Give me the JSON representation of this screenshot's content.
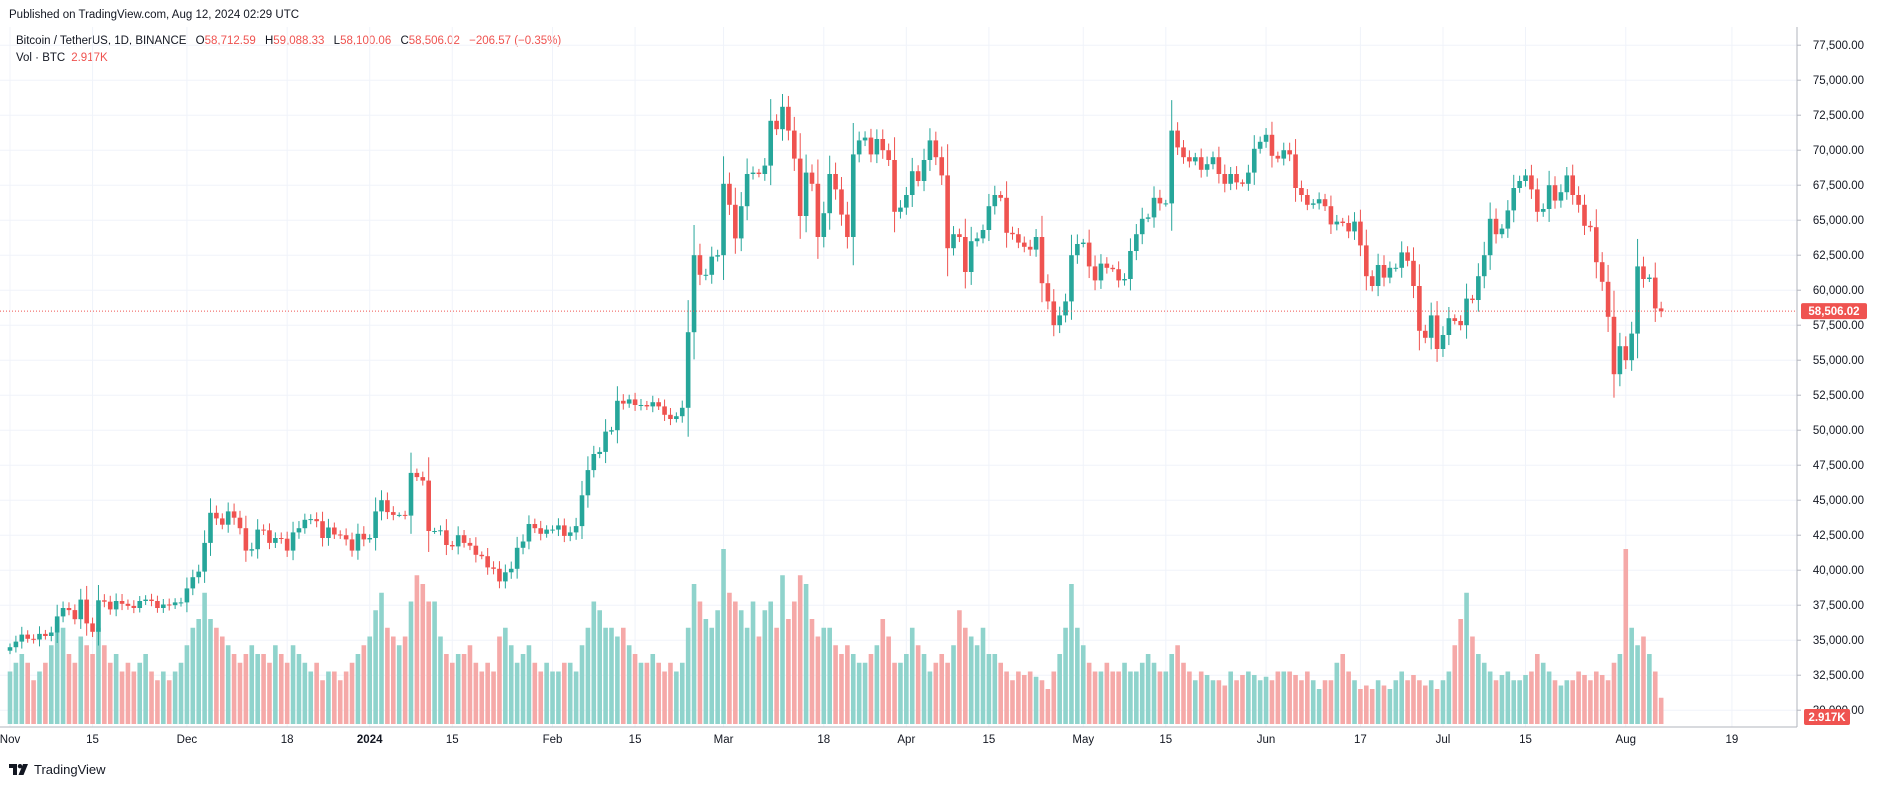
{
  "header": {
    "published": "Published on TradingView.com, Aug 12, 2024 02:29 UTC"
  },
  "legend": {
    "symbol": "Bitcoin / TetherUS, 1D, BINANCE",
    "o_label": "O",
    "o_value": "58,712.59",
    "h_label": "H",
    "h_value": "59,088.33",
    "l_label": "L",
    "l_value": "58,100.06",
    "c_label": "C",
    "c_value": "58,506.02",
    "change": "−206.57 (−0.35%)",
    "vol_label": "Vol · BTC",
    "vol_value": "2.917K"
  },
  "footer": {
    "logo_text": "TradingView"
  },
  "price_tag": "58,506.02",
  "volume_tag": "2.917K",
  "colors": {
    "up": "#26a69a",
    "down": "#ef5350",
    "vol_up": "#8fd3cc",
    "vol_down": "#f5a9a8",
    "grid": "#f0f3fa"
  },
  "chart_data": {
    "type": "candlestick",
    "symbol": "BTCUSDT",
    "interval": "1D",
    "yaxis": {
      "ticks": [
        "77,500.00",
        "75,000.00",
        "72,500.00",
        "70,000.00",
        "67,500.00",
        "65,000.00",
        "62,500.00",
        "60,000.00",
        "57,500.00",
        "55,000.00",
        "52,500.00",
        "50,000.00",
        "47,500.00",
        "45,000.00",
        "42,500.00",
        "40,000.00",
        "37,500.00",
        "35,000.00",
        "32,500.00",
        "30,000.00"
      ],
      "ylim": [
        28800,
        78800
      ]
    },
    "xaxis": {
      "ticks": [
        {
          "label": "Nov",
          "day": 0
        },
        {
          "label": "15",
          "day": 14
        },
        {
          "label": "Dec",
          "day": 30
        },
        {
          "label": "18",
          "day": 47
        },
        {
          "label": "2024",
          "day": 61
        },
        {
          "label": "15",
          "day": 75
        },
        {
          "label": "Feb",
          "day": 92
        },
        {
          "label": "15",
          "day": 106
        },
        {
          "label": "Mar",
          "day": 121
        },
        {
          "label": "18",
          "day": 138
        },
        {
          "label": "Apr",
          "day": 152
        },
        {
          "label": "15",
          "day": 166
        },
        {
          "label": "May",
          "day": 182
        },
        {
          "label": "15",
          "day": 196
        },
        {
          "label": "Jun",
          "day": 213
        },
        {
          "label": "17",
          "day": 229
        },
        {
          "label": "Jul",
          "day": 243
        },
        {
          "label": "15",
          "day": 257
        },
        {
          "label": "Aug",
          "day": 274
        },
        {
          "label": "19",
          "day": 292
        }
      ]
    },
    "closes": [
      34500,
      34900,
      35400,
      35100,
      35050,
      35450,
      35300,
      35550,
      36700,
      37300,
      37150,
      36500,
      37900,
      36200,
      35600,
      37850,
      37750,
      37200,
      37800,
      37600,
      37450,
      37300,
      37800,
      37900,
      37800,
      37300,
      37550,
      37500,
      37700,
      37700,
      38700,
      39500,
      39900,
      41950,
      44100,
      43700,
      43250,
      44200,
      43750,
      43000,
      41400,
      41500,
      42900,
      42850,
      41950,
      42300,
      42250,
      41400,
      42700,
      43000,
      43600,
      43650,
      43500,
      42300,
      43050,
      42550,
      42500,
      42200,
      41400,
      42600,
      42200,
      42300,
      44200,
      45000,
      44150,
      43950,
      43950,
      43900,
      46950,
      46650,
      46400,
      42800,
      42800,
      42850,
      41800,
      41700,
      42500,
      41950,
      41750,
      41100,
      41000,
      40200,
      40100,
      39200,
      39850,
      40100,
      41600,
      42050,
      43300,
      43000,
      42600,
      42900,
      42900,
      43200,
      42450,
      42700,
      43150,
      45350,
      47150,
      48300,
      48450,
      49900,
      50000,
      52100,
      51900,
      52200,
      51800,
      51800,
      51700,
      52000,
      51700,
      51100,
      50800,
      51000,
      51600,
      57000,
      62500,
      61100,
      61100,
      62400,
      62500,
      67600,
      66100,
      63700,
      66000,
      68300,
      68400,
      68300,
      68900,
      72100,
      71500,
      73100,
      71400,
      69400,
      65300,
      68400,
      67600,
      63800,
      65500,
      68300,
      67200,
      65400,
      63800,
      69700,
      70700,
      70900,
      69700,
      70800,
      70000,
      69300,
      65600,
      65900,
      66800,
      68500,
      67800,
      69300,
      70700,
      69500,
      68200,
      63000,
      64000,
      63800,
      61300,
      63500,
      63700,
      64300,
      66000,
      66800,
      66600,
      64100,
      64000,
      63400,
      63100,
      62900,
      63800,
      60500,
      59200,
      57500,
      58200,
      59200,
      62500,
      63300,
      63400,
      61700,
      60700,
      61900,
      61600,
      61500,
      60700,
      60800,
      62800,
      64000,
      65100,
      65200,
      66600,
      66200,
      66200,
      71400,
      70200,
      69500,
      69200,
      69500,
      68600,
      69000,
      69500,
      68300,
      67600,
      68300,
      67700,
      67600,
      68400,
      70100,
      70600,
      71100,
      69600,
      69400,
      70000,
      69700,
      67300,
      66800,
      66100,
      66200,
      66500,
      66000,
      64700,
      64900,
      64800,
      64200,
      64900,
      63200,
      61000,
      60300,
      61800,
      60900,
      61600,
      61600,
      62700,
      62100,
      60300,
      57100,
      56600,
      58200,
      55800,
      56800,
      58000,
      57800,
      57500,
      59400,
      59300,
      61000,
      62500,
      65100,
      64000,
      64400,
      65700,
      67300,
      67800,
      68200,
      67200,
      65600,
      65800,
      67500,
      66400,
      67000,
      68200,
      66800,
      66100,
      64600,
      64500,
      62000,
      60600,
      58100,
      54000,
      56000,
      55000,
      56900,
      61700,
      60800,
      60900,
      58700,
      58500
    ],
    "volumes_relative": [
      0.3,
      0.35,
      0.4,
      0.35,
      0.25,
      0.3,
      0.35,
      0.45,
      0.6,
      0.55,
      0.4,
      0.35,
      0.5,
      0.45,
      0.4,
      0.55,
      0.45,
      0.35,
      0.4,
      0.3,
      0.35,
      0.3,
      0.35,
      0.4,
      0.3,
      0.25,
      0.3,
      0.25,
      0.3,
      0.35,
      0.45,
      0.55,
      0.6,
      0.75,
      0.6,
      0.55,
      0.5,
      0.45,
      0.4,
      0.35,
      0.4,
      0.45,
      0.4,
      0.4,
      0.35,
      0.45,
      0.4,
      0.35,
      0.45,
      0.4,
      0.35,
      0.3,
      0.35,
      0.25,
      0.3,
      0.3,
      0.25,
      0.3,
      0.35,
      0.4,
      0.45,
      0.5,
      0.65,
      0.75,
      0.55,
      0.5,
      0.45,
      0.5,
      0.7,
      0.85,
      0.8,
      0.7,
      0.7,
      0.5,
      0.4,
      0.35,
      0.4,
      0.4,
      0.45,
      0.35,
      0.3,
      0.35,
      0.3,
      0.5,
      0.55,
      0.45,
      0.35,
      0.4,
      0.45,
      0.35,
      0.3,
      0.35,
      0.3,
      0.3,
      0.35,
      0.35,
      0.3,
      0.45,
      0.55,
      0.7,
      0.65,
      0.55,
      0.55,
      0.5,
      0.55,
      0.45,
      0.4,
      0.35,
      0.35,
      0.4,
      0.35,
      0.3,
      0.35,
      0.3,
      0.35,
      0.55,
      0.8,
      0.7,
      0.6,
      0.55,
      0.65,
      1.0,
      0.75,
      0.7,
      0.65,
      0.55,
      0.7,
      0.5,
      0.65,
      0.7,
      0.55,
      0.85,
      0.6,
      0.7,
      0.85,
      0.8,
      0.6,
      0.5,
      0.55,
      0.55,
      0.45,
      0.4,
      0.45,
      0.4,
      0.35,
      0.35,
      0.4,
      0.45,
      0.6,
      0.5,
      0.35,
      0.35,
      0.4,
      0.55,
      0.45,
      0.4,
      0.3,
      0.35,
      0.4,
      0.35,
      0.45,
      0.65,
      0.55,
      0.5,
      0.45,
      0.55,
      0.4,
      0.4,
      0.35,
      0.3,
      0.25,
      0.3,
      0.28,
      0.3,
      0.27,
      0.25,
      0.2,
      0.3,
      0.4,
      0.55,
      0.8,
      0.55,
      0.45,
      0.35,
      0.3,
      0.3,
      0.35,
      0.3,
      0.3,
      0.35,
      0.3,
      0.3,
      0.35,
      0.4,
      0.35,
      0.3,
      0.3,
      0.4,
      0.45,
      0.35,
      0.3,
      0.25,
      0.3,
      0.28,
      0.25,
      0.25,
      0.22,
      0.3,
      0.25,
      0.28,
      0.3,
      0.28,
      0.25,
      0.27,
      0.25,
      0.3,
      0.3,
      0.3,
      0.28,
      0.25,
      0.3,
      0.25,
      0.2,
      0.25,
      0.25,
      0.35,
      0.4,
      0.3,
      0.25,
      0.2,
      0.22,
      0.2,
      0.25,
      0.22,
      0.2,
      0.25,
      0.3,
      0.25,
      0.28,
      0.25,
      0.22,
      0.25,
      0.2,
      0.25,
      0.3,
      0.45,
      0.6,
      0.75,
      0.5,
      0.4,
      0.35,
      0.3,
      0.25,
      0.28,
      0.3,
      0.25,
      0.25,
      0.28,
      0.3,
      0.4,
      0.35,
      0.3,
      0.25,
      0.22,
      0.25,
      0.25,
      0.3,
      0.28,
      0.25,
      0.3,
      0.28,
      0.25,
      0.35,
      0.4,
      1.0,
      0.55,
      0.45,
      0.5,
      0.4,
      0.3,
      0.15,
      0.06
    ]
  }
}
